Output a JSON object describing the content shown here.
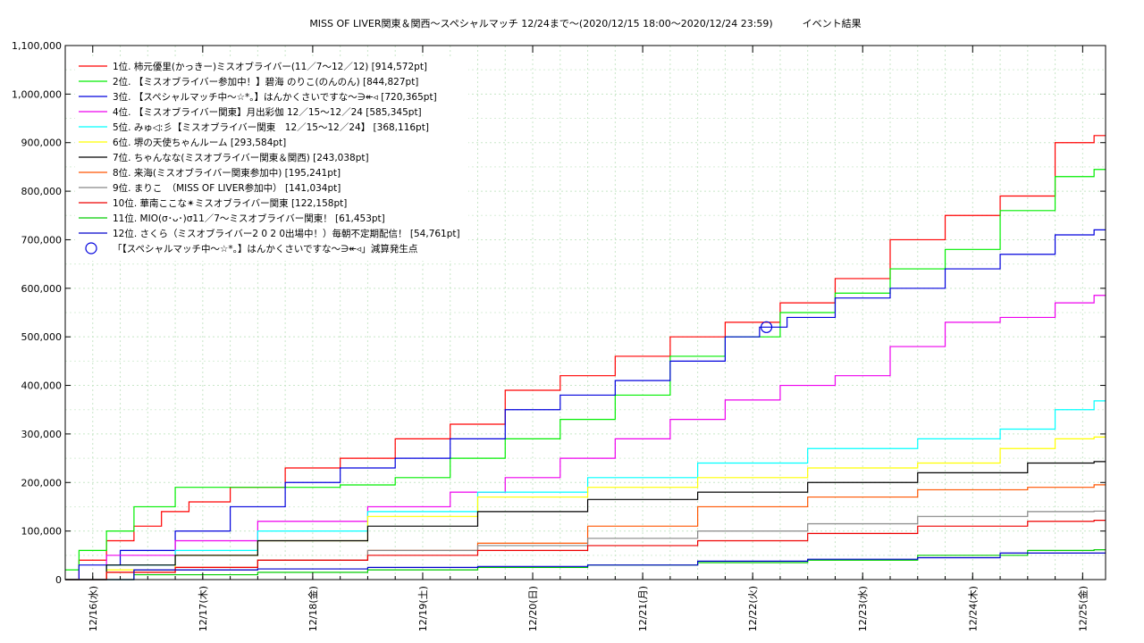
{
  "chart_data": {
    "type": "line",
    "title": "MISS OF LIVER関東＆関西〜スペシャルマッチ 12/24まで〜(2020/12/15 18:00〜2020/12/24 23:59)　　　イベント結果",
    "xlabel": "",
    "ylabel": "",
    "x_range": [
      "2020-12-15 18:00",
      "2020-12-25 05:00"
    ],
    "ylim": [
      0,
      1100000
    ],
    "y_ticks": [
      0,
      100000,
      200000,
      300000,
      400000,
      500000,
      600000,
      700000,
      800000,
      900000,
      1000000,
      1100000
    ],
    "y_tick_labels": [
      "0",
      "100,000",
      "200,000",
      "300,000",
      "400,000",
      "500,000",
      "600,000",
      "700,000",
      "800,000",
      "900,000",
      "1,000,000",
      "1,100,000"
    ],
    "x_ticks": [
      "2020-12-16",
      "2020-12-17",
      "2020-12-18",
      "2020-12-19",
      "2020-12-20",
      "2020-12-21",
      "2020-12-22",
      "2020-12-23",
      "2020-12-24",
      "2020-12-25"
    ],
    "x_tick_labels": [
      "12/16(水)",
      "12/17(木)",
      "12/18(金)",
      "12/19(土)",
      "12/20(日)",
      "12/21(月)",
      "12/22(火)",
      "12/23(水)",
      "12/24(木)",
      "12/25(金)"
    ],
    "grid": true,
    "legend_position": "top-left",
    "series": [
      {
        "name": "1位. 柿元優里(かっきー)ミスオブライバー(11／7〜12／12) [914,572pt]",
        "color": "#ff0000",
        "x": [
          "2020-12-15 18:00",
          "2020-12-16 00:00",
          "2020-12-16 06:00",
          "2020-12-16 12:00",
          "2020-12-16 18:00",
          "2020-12-17 00:00",
          "2020-12-17 12:00",
          "2020-12-18 00:00",
          "2020-12-18 12:00",
          "2020-12-19 00:00",
          "2020-12-19 12:00",
          "2020-12-20 00:00",
          "2020-12-20 12:00",
          "2020-12-21 00:00",
          "2020-12-21 12:00",
          "2020-12-22 00:00",
          "2020-12-22 12:00",
          "2020-12-23 00:00",
          "2020-12-23 12:00",
          "2020-12-24 00:00",
          "2020-12-24 12:00",
          "2020-12-24 23:59",
          "2020-12-25 05:00"
        ],
        "y": [
          0,
          40000,
          80000,
          110000,
          140000,
          160000,
          190000,
          230000,
          250000,
          290000,
          320000,
          390000,
          420000,
          460000,
          500000,
          530000,
          570000,
          620000,
          700000,
          750000,
          790000,
          900000,
          914572
        ]
      },
      {
        "name": "2位. 【ミスオブライバー参加中！】碧海 のりこ(のんのん) [844,827pt]",
        "color": "#00ee00",
        "x": [
          "2020-12-15 18:00",
          "2020-12-16 00:00",
          "2020-12-16 06:00",
          "2020-12-16 12:00",
          "2020-12-17 00:00",
          "2020-12-17 12:00",
          "2020-12-18 00:00",
          "2020-12-18 12:00",
          "2020-12-19 00:00",
          "2020-12-19 12:00",
          "2020-12-20 00:00",
          "2020-12-20 12:00",
          "2020-12-21 00:00",
          "2020-12-21 12:00",
          "2020-12-22 00:00",
          "2020-12-22 12:00",
          "2020-12-23 00:00",
          "2020-12-23 12:00",
          "2020-12-24 00:00",
          "2020-12-24 12:00",
          "2020-12-24 23:59",
          "2020-12-25 05:00"
        ],
        "y": [
          20000,
          60000,
          100000,
          150000,
          190000,
          190000,
          190000,
          195000,
          210000,
          250000,
          290000,
          330000,
          380000,
          460000,
          500000,
          550000,
          590000,
          640000,
          680000,
          760000,
          830000,
          844827
        ]
      },
      {
        "name": "3位. 【スペシャルマッチ中〜☆*。】はんかくさいですな〜∋↞◃ [720,365pt]",
        "color": "#0000dd",
        "x": [
          "2020-12-15 18:00",
          "2020-12-16 00:00",
          "2020-12-16 12:00",
          "2020-12-17 00:00",
          "2020-12-17 12:00",
          "2020-12-18 00:00",
          "2020-12-18 12:00",
          "2020-12-19 00:00",
          "2020-12-19 12:00",
          "2020-12-20 00:00",
          "2020-12-20 12:00",
          "2020-12-21 00:00",
          "2020-12-21 12:00",
          "2020-12-22 00:00",
          "2020-12-22 03:00",
          "2020-12-22 12:00",
          "2020-12-23 00:00",
          "2020-12-23 12:00",
          "2020-12-24 00:00",
          "2020-12-24 12:00",
          "2020-12-24 23:59",
          "2020-12-25 05:00"
        ],
        "y": [
          0,
          30000,
          60000,
          100000,
          150000,
          200000,
          230000,
          250000,
          290000,
          350000,
          380000,
          410000,
          450000,
          500000,
          520000,
          540000,
          580000,
          600000,
          640000,
          670000,
          710000,
          720365
        ]
      },
      {
        "name": "4位. 【ミスオブライバー関東】月出彩伽 12／15〜12／24 [585,345pt]",
        "color": "#ee00ee",
        "x": [
          "2020-12-15 18:00",
          "2020-12-16 12:00",
          "2020-12-17 00:00",
          "2020-12-18 00:00",
          "2020-12-19 00:00",
          "2020-12-19 12:00",
          "2020-12-20 00:00",
          "2020-12-20 12:00",
          "2020-12-21 00:00",
          "2020-12-21 12:00",
          "2020-12-22 00:00",
          "2020-12-22 12:00",
          "2020-12-23 00:00",
          "2020-12-23 12:00",
          "2020-12-24 00:00",
          "2020-12-24 12:00",
          "2020-12-24 23:59",
          "2020-12-25 05:00"
        ],
        "y": [
          0,
          50000,
          80000,
          120000,
          150000,
          180000,
          210000,
          250000,
          290000,
          330000,
          370000,
          400000,
          420000,
          480000,
          530000,
          540000,
          570000,
          585345
        ]
      },
      {
        "name": "5位. みゅ◁:彡【ミスオブライバー関東　12／15〜12／24】 [368,116pt]",
        "color": "#00ffff",
        "x": [
          "2020-12-15 18:00",
          "2020-12-16 12:00",
          "2020-12-17 00:00",
          "2020-12-18 00:00",
          "2020-12-19 00:00",
          "2020-12-20 00:00",
          "2020-12-21 00:00",
          "2020-12-22 00:00",
          "2020-12-23 00:00",
          "2020-12-24 00:00",
          "2020-12-24 12:00",
          "2020-12-24 23:59",
          "2020-12-25 05:00"
        ],
        "y": [
          0,
          30000,
          60000,
          100000,
          140000,
          180000,
          210000,
          240000,
          270000,
          290000,
          310000,
          350000,
          368116
        ]
      },
      {
        "name": "6位. 堺の天使ちゃんルーム [293,584pt]",
        "color": "#ffff00",
        "x": [
          "2020-12-15 18:00",
          "2020-12-16 12:00",
          "2020-12-17 00:00",
          "2020-12-18 00:00",
          "2020-12-19 00:00",
          "2020-12-20 00:00",
          "2020-12-21 00:00",
          "2020-12-22 00:00",
          "2020-12-23 00:00",
          "2020-12-24 00:00",
          "2020-12-24 12:00",
          "2020-12-24 23:59",
          "2020-12-25 05:00"
        ],
        "y": [
          0,
          20000,
          50000,
          80000,
          130000,
          170000,
          190000,
          210000,
          230000,
          240000,
          270000,
          290000,
          293584
        ]
      },
      {
        "name": "7位. ちゃんなな(ミスオブライバー関東＆関西) [243,038pt]",
        "color": "#000000",
        "x": [
          "2020-12-15 18:00",
          "2020-12-16 12:00",
          "2020-12-17 00:00",
          "2020-12-18 00:00",
          "2020-12-19 00:00",
          "2020-12-20 00:00",
          "2020-12-21 00:00",
          "2020-12-22 00:00",
          "2020-12-23 00:00",
          "2020-12-24 00:00",
          "2020-12-24 23:59",
          "2020-12-25 05:00"
        ],
        "y": [
          0,
          30000,
          50000,
          80000,
          110000,
          140000,
          165000,
          180000,
          200000,
          220000,
          240000,
          243038
        ]
      },
      {
        "name": "8位. 来海(ミスオブライバー関東参加中) [195,241pt]",
        "color": "#ff5500",
        "x": [
          "2020-12-15 18:00",
          "2020-12-16 12:00",
          "2020-12-17 00:00",
          "2020-12-18 00:00",
          "2020-12-19 00:00",
          "2020-12-20 00:00",
          "2020-12-21 00:00",
          "2020-12-22 00:00",
          "2020-12-23 00:00",
          "2020-12-24 00:00",
          "2020-12-24 23:59",
          "2020-12-25 05:00"
        ],
        "y": [
          0,
          15000,
          25000,
          40000,
          60000,
          75000,
          110000,
          150000,
          170000,
          185000,
          190000,
          195241
        ]
      },
      {
        "name": "9位. まりこ　（MISS OF LIVER参加中） [141,034pt]",
        "color": "#888888",
        "x": [
          "2020-12-15 18:00",
          "2020-12-17 00:00",
          "2020-12-18 00:00",
          "2020-12-19 00:00",
          "2020-12-20 00:00",
          "2020-12-21 00:00",
          "2020-12-22 00:00",
          "2020-12-23 00:00",
          "2020-12-24 00:00",
          "2020-12-24 23:59",
          "2020-12-25 05:00"
        ],
        "y": [
          0,
          20000,
          40000,
          60000,
          70000,
          85000,
          100000,
          115000,
          130000,
          140000,
          141034
        ]
      },
      {
        "name": "10位. 華南ここな✴ミスオブライバー関東 [122,158pt]",
        "color": "#ee0000",
        "x": [
          "2020-12-15 18:00",
          "2020-12-16 12:00",
          "2020-12-17 00:00",
          "2020-12-18 00:00",
          "2020-12-19 00:00",
          "2020-12-20 00:00",
          "2020-12-21 00:00",
          "2020-12-22 00:00",
          "2020-12-23 00:00",
          "2020-12-24 00:00",
          "2020-12-24 23:59",
          "2020-12-25 05:00"
        ],
        "y": [
          0,
          15000,
          25000,
          40000,
          50000,
          60000,
          70000,
          80000,
          95000,
          110000,
          120000,
          122158
        ]
      },
      {
        "name": "11位. MIO(σ･ᴗ･)σ11／7〜ミスオブライバー関東！ [61,453pt]",
        "color": "#00cc00",
        "x": [
          "2020-12-15 18:00",
          "2020-12-17 00:00",
          "2020-12-18 00:00",
          "2020-12-19 00:00",
          "2020-12-20 00:00",
          "2020-12-21 00:00",
          "2020-12-22 00:00",
          "2020-12-23 00:00",
          "2020-12-24 00:00",
          "2020-12-24 23:59",
          "2020-12-25 05:00"
        ],
        "y": [
          0,
          10000,
          15000,
          20000,
          25000,
          30000,
          35000,
          40000,
          50000,
          60000,
          61453
        ]
      },
      {
        "name": "12位. さくら（ミスオブライバー2 0 2 0出場中！）毎朝不定期配信！ [54,761pt]",
        "color": "#0000cc",
        "x": [
          "2020-12-15 18:00",
          "2020-12-17 00:00",
          "2020-12-18 00:00",
          "2020-12-19 00:00",
          "2020-12-20 00:00",
          "2020-12-21 00:00",
          "2020-12-22 00:00",
          "2020-12-23 00:00",
          "2020-12-24 00:00",
          "2020-12-24 12:00",
          "2020-12-25 05:00"
        ],
        "y": [
          0,
          20000,
          22000,
          25000,
          27000,
          30000,
          38000,
          42000,
          45000,
          54761,
          54761
        ]
      }
    ],
    "markers": [
      {
        "name": "「【スペシャルマッチ中〜☆*。】はんかくさいですな〜∋↞◃」減算発生点",
        "color": "#0000dd",
        "x": "2020-12-22 03:00",
        "y": 520000
      }
    ]
  }
}
